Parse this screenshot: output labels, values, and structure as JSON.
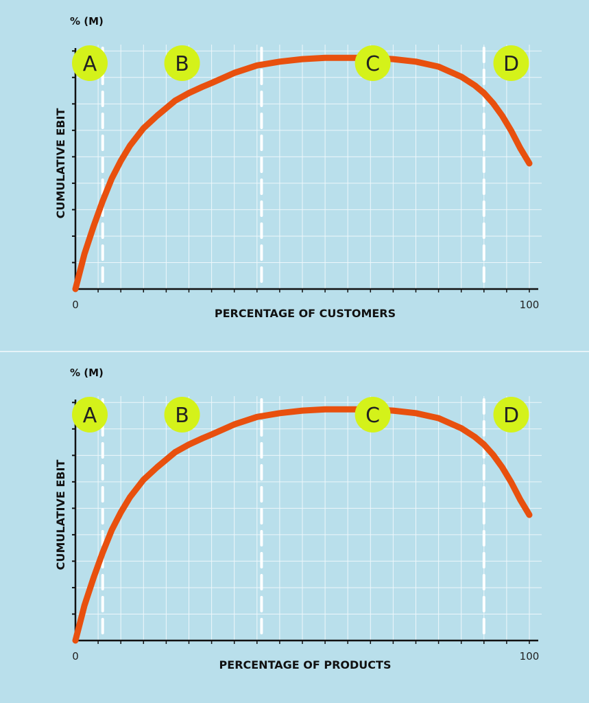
{
  "colors": {
    "background": "#b9dfeb",
    "grid": "#eef7fb",
    "curve": "#e8500e",
    "zone_badge": "#d4f21a",
    "axis": "#111111",
    "zone_divider": "#ffffff"
  },
  "chart_data": [
    {
      "type": "line",
      "unit_label": "% (M)",
      "xlabel": "PERCENTAGE OF CUSTOMERS",
      "ylabel": "CUMULATIVE EBIT",
      "x_tick_labels": [
        "0",
        "100"
      ],
      "xlim": [
        0,
        100
      ],
      "ylim": [
        0,
        100
      ],
      "grid": true,
      "zones": [
        {
          "label": "A",
          "center_x": 3
        },
        {
          "label": "B",
          "center_x": 23.5
        },
        {
          "label": "C",
          "center_x": 65.5
        },
        {
          "label": "D",
          "center_x": 96
        }
      ],
      "zone_boundaries_x": [
        6,
        41,
        90
      ],
      "series": [
        {
          "x": [
            0,
            2,
            4,
            6,
            8,
            10,
            12,
            15,
            18,
            20,
            22,
            25,
            28,
            30,
            35,
            40,
            45,
            50,
            55,
            60,
            65,
            70,
            75,
            80,
            85,
            88,
            90,
            92,
            94,
            96,
            98,
            100
          ],
          "y": [
            0,
            14,
            25,
            35,
            44,
            51,
            57,
            64,
            69,
            72,
            75,
            78,
            80.5,
            82,
            86,
            89,
            90.5,
            91.5,
            92,
            92,
            92,
            91.5,
            90.5,
            88.5,
            84.5,
            81,
            78,
            74,
            69,
            63,
            56,
            50
          ]
        }
      ]
    },
    {
      "type": "line",
      "unit_label": "% (M)",
      "xlabel": "PERCENTAGE OF PRODUCTS",
      "ylabel": "CUMULATIVE EBIT",
      "x_tick_labels": [
        "0",
        "100"
      ],
      "xlim": [
        0,
        100
      ],
      "ylim": [
        0,
        100
      ],
      "grid": true,
      "zones": [
        {
          "label": "A",
          "center_x": 3
        },
        {
          "label": "B",
          "center_x": 23.5
        },
        {
          "label": "C",
          "center_x": 65.5
        },
        {
          "label": "D",
          "center_x": 96
        }
      ],
      "zone_boundaries_x": [
        6,
        41,
        90
      ],
      "series": [
        {
          "x": [
            0,
            2,
            4,
            6,
            8,
            10,
            12,
            15,
            18,
            20,
            22,
            25,
            28,
            30,
            35,
            40,
            45,
            50,
            55,
            60,
            65,
            70,
            75,
            80,
            85,
            88,
            90,
            92,
            94,
            96,
            98,
            100
          ],
          "y": [
            0,
            14,
            25,
            35,
            44,
            51,
            57,
            64,
            69,
            72,
            75,
            78,
            80.5,
            82,
            86,
            89,
            90.5,
            91.5,
            92,
            92,
            92,
            91.5,
            90.5,
            88.5,
            84.5,
            81,
            78,
            74,
            69,
            63,
            56,
            50
          ]
        }
      ]
    }
  ]
}
